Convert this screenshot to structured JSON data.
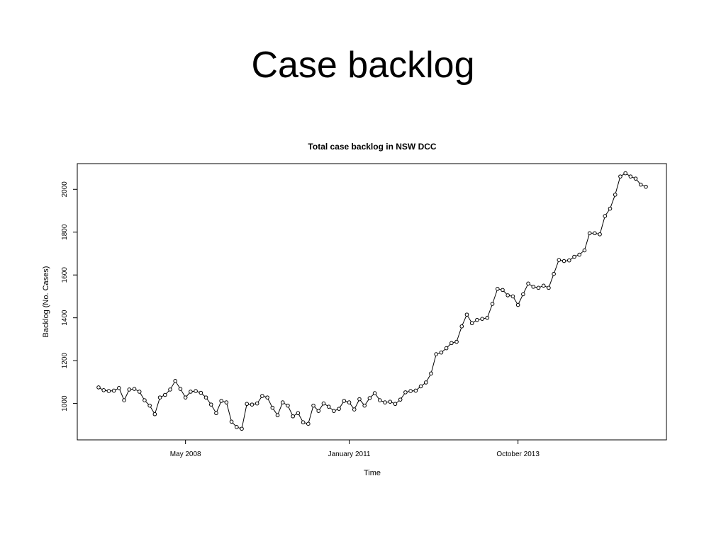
{
  "slide": {
    "title": "Case backlog"
  },
  "chart_data": {
    "type": "line",
    "title": "Total case backlog in NSW DCC",
    "xlabel": "Time",
    "ylabel": "Backlog (No. Cases)",
    "ylim": [
      830,
      2120
    ],
    "y_ticks": [
      1000,
      1200,
      1400,
      1600,
      1800,
      2000
    ],
    "x_ticks": [
      {
        "label": "May 2008",
        "index": 17
      },
      {
        "label": "January 2011",
        "index": 49
      },
      {
        "label": "October 2013",
        "index": 82
      }
    ],
    "series": [
      {
        "values": [
          1075,
          1062,
          1058,
          1060,
          1072,
          1015,
          1065,
          1068,
          1055,
          1015,
          990,
          950,
          1028,
          1040,
          1065,
          1105,
          1068,
          1028,
          1055,
          1058,
          1050,
          1028,
          995,
          955,
          1012,
          1005,
          915,
          890,
          882,
          998,
          995,
          1000,
          1035,
          1028,
          980,
          945,
          1005,
          990,
          940,
          955,
          912,
          905,
          990,
          965,
          1000,
          985,
          965,
          975,
          1012,
          1005,
          972,
          1020,
          990,
          1025,
          1048,
          1015,
          1005,
          1008,
          998,
          1018,
          1052,
          1058,
          1060,
          1080,
          1098,
          1140,
          1230,
          1238,
          1258,
          1282,
          1288,
          1360,
          1415,
          1375,
          1390,
          1395,
          1400,
          1465,
          1535,
          1530,
          1505,
          1500,
          1460,
          1510,
          1560,
          1545,
          1540,
          1550,
          1540,
          1605,
          1670,
          1665,
          1668,
          1685,
          1695,
          1715,
          1795,
          1795,
          1790,
          1875,
          1910,
          1975,
          2060,
          2075,
          2060,
          2050,
          2022,
          2012
        ]
      }
    ]
  }
}
